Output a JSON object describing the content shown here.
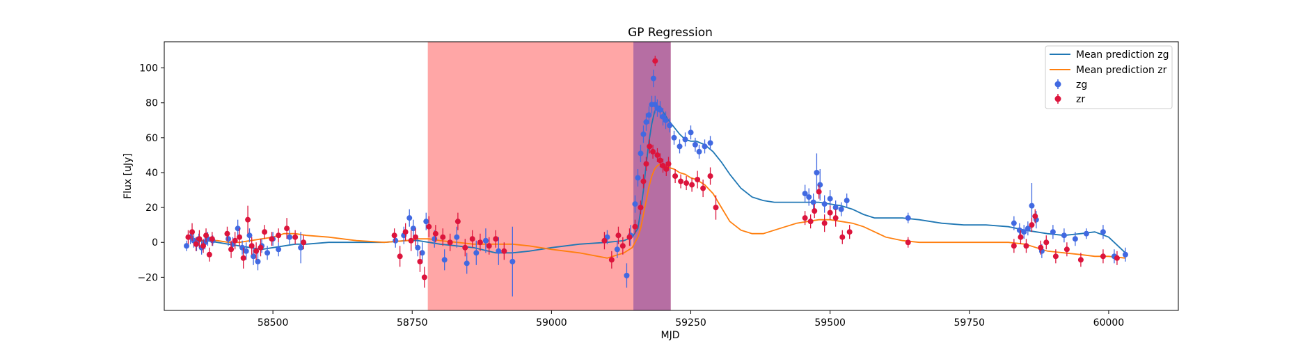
{
  "chart_data": {
    "type": "scatter",
    "title": "GP Regression",
    "xlabel": "MJD",
    "ylabel": "Flux [uJy]",
    "xlim": [
      58305,
      60125
    ],
    "ylim": [
      -39,
      115
    ],
    "x_ticks": [
      58500,
      58750,
      59000,
      59250,
      59500,
      59750,
      60000
    ],
    "y_ticks": [
      -20,
      0,
      20,
      40,
      60,
      80,
      100
    ],
    "grid": false,
    "legend_position": "top-right",
    "shaded_regions": [
      {
        "x0": 58778,
        "x1": 59214,
        "color": "#ff4d4d",
        "opacity": 0.5
      },
      {
        "x0": 59147,
        "x1": 59214,
        "color": "#7a3fa0",
        "opacity": 0.55
      }
    ],
    "series": [
      {
        "name": "Mean prediction zg",
        "kind": "line",
        "color": "#1f77b4",
        "x": [
          58360,
          58380,
          58400,
          58420,
          58440,
          58460,
          58480,
          58500,
          58520,
          58540,
          58560,
          58600,
          58650,
          58700,
          58740,
          58760,
          58780,
          58800,
          58830,
          58860,
          58900,
          58930,
          58960,
          59000,
          59050,
          59100,
          59130,
          59145,
          59155,
          59160,
          59165,
          59170,
          59175,
          59180,
          59185,
          59190,
          59195,
          59200,
          59210,
          59220,
          59230,
          59240,
          59250,
          59260,
          59275,
          59290,
          59305,
          59320,
          59340,
          59360,
          59380,
          59400,
          59420,
          59440,
          59460,
          59480,
          59500,
          59520,
          59540,
          59560,
          59580,
          59600,
          59630,
          59660,
          59700,
          59740,
          59780,
          59820,
          59850,
          59870,
          59890,
          59920,
          59950,
          59975,
          60000,
          60030
        ],
        "y": [
          1,
          1,
          0,
          -1,
          -2,
          -3,
          -4,
          -3,
          -2,
          -1,
          -1,
          0,
          0,
          0,
          1,
          1,
          0,
          -1,
          -2,
          -3,
          -6,
          -6,
          -5,
          -3,
          -1,
          0,
          1,
          3,
          8,
          18,
          30,
          45,
          58,
          68,
          75,
          78,
          78,
          75,
          70,
          66,
          62,
          59,
          58,
          58,
          56,
          52,
          46,
          39,
          31,
          26,
          24,
          23,
          23,
          23,
          23,
          23,
          22,
          21,
          19,
          16,
          14,
          14,
          14,
          13,
          11,
          10,
          10,
          9,
          7,
          6,
          5,
          4,
          5,
          6,
          3,
          -6
        ]
      },
      {
        "name": "Mean prediction zr",
        "kind": "line",
        "color": "#ff7f0e",
        "x": [
          58360,
          58380,
          58400,
          58420,
          58440,
          58460,
          58480,
          58500,
          58520,
          58540,
          58560,
          58600,
          58650,
          58700,
          58740,
          58760,
          58780,
          58800,
          58830,
          58860,
          58900,
          58930,
          58960,
          59000,
          59050,
          59100,
          59130,
          59145,
          59155,
          59160,
          59165,
          59170,
          59175,
          59180,
          59185,
          59190,
          59195,
          59200,
          59210,
          59220,
          59230,
          59240,
          59250,
          59260,
          59275,
          59290,
          59305,
          59320,
          59340,
          59360,
          59380,
          59400,
          59420,
          59440,
          59460,
          59480,
          59500,
          59520,
          59540,
          59560,
          59580,
          59600,
          59630,
          59660,
          59700,
          59740,
          59780,
          59820,
          59850,
          59870,
          59890,
          59920,
          59950,
          59975,
          60000,
          60030
        ],
        "y": [
          0,
          1,
          1,
          0,
          0,
          1,
          2,
          3,
          5,
          5,
          4,
          3,
          1,
          0,
          1,
          2,
          2,
          1,
          0,
          -1,
          -1,
          -1,
          -2,
          -4,
          -6,
          -9,
          -6,
          -3,
          3,
          8,
          16,
          24,
          32,
          38,
          42,
          44,
          45,
          44,
          43,
          42,
          40,
          39,
          37,
          36,
          33,
          28,
          20,
          12,
          7,
          5,
          5,
          7,
          9,
          11,
          12,
          13,
          13,
          12,
          11,
          9,
          6,
          3,
          1,
          0,
          0,
          0,
          0,
          0,
          -1,
          -3,
          -5,
          -6,
          -7,
          -8,
          -8,
          -9
        ]
      },
      {
        "name": "zg",
        "kind": "errorbar",
        "color": "#4169e1",
        "x": [
          58345,
          58352,
          58358,
          58363,
          58367,
          58372,
          58378,
          58383,
          58392,
          58420,
          58428,
          58437,
          58445,
          58452,
          58458,
          58465,
          58473,
          58480,
          58490,
          58500,
          58510,
          58530,
          58550,
          58720,
          58735,
          58745,
          58752,
          58760,
          58768,
          58775,
          58790,
          58808,
          58830,
          58848,
          58865,
          58882,
          58905,
          58930,
          59100,
          59118,
          59135,
          59142,
          59150,
          59155,
          59160,
          59165,
          59170,
          59175,
          59180,
          59183,
          59186,
          59190,
          59195,
          59200,
          59205,
          59212,
          59220,
          59230,
          59240,
          59250,
          59258,
          59265,
          59275,
          59285,
          59455,
          59462,
          59470,
          59476,
          59482,
          59490,
          59500,
          59510,
          59520,
          59530,
          59640,
          59830,
          59840,
          59848,
          59855,
          59862,
          59870,
          59880,
          59900,
          59920,
          59940,
          59960,
          59990,
          60010,
          60030
        ],
        "y": [
          -2,
          3,
          1,
          -1,
          2,
          -3,
          0,
          2,
          1,
          2,
          -1,
          8,
          -3,
          -5,
          4,
          -8,
          -11,
          -2,
          -6,
          2,
          -4,
          3,
          -3,
          1,
          4,
          14,
          8,
          -3,
          -6,
          12,
          2,
          -10,
          3,
          -12,
          -6,
          1,
          -5,
          -11,
          3,
          -4,
          -19,
          4,
          22,
          37,
          51,
          62,
          69,
          73,
          79,
          94,
          79,
          77,
          76,
          72,
          70,
          67,
          60,
          55,
          59,
          63,
          56,
          52,
          55,
          57,
          28,
          26,
          23,
          40,
          33,
          22,
          25,
          20,
          19,
          24,
          14,
          11,
          7,
          6,
          8,
          21,
          13,
          -5,
          6,
          4,
          2,
          5,
          6,
          -8,
          -7
        ],
        "err": [
          3,
          4,
          4,
          4,
          3,
          4,
          4,
          4,
          3,
          4,
          4,
          5,
          4,
          5,
          4,
          5,
          5,
          4,
          4,
          4,
          4,
          4,
          9,
          4,
          5,
          5,
          5,
          5,
          6,
          5,
          5,
          6,
          6,
          6,
          7,
          7,
          8,
          20,
          4,
          5,
          7,
          6,
          5,
          5,
          5,
          5,
          5,
          5,
          5,
          5,
          5,
          5,
          5,
          5,
          5,
          4,
          4,
          4,
          4,
          4,
          4,
          4,
          4,
          4,
          5,
          5,
          5,
          11,
          9,
          5,
          5,
          4,
          4,
          4,
          3,
          4,
          4,
          4,
          4,
          13,
          5,
          4,
          4,
          4,
          4,
          3,
          4,
          4,
          4
        ]
      },
      {
        "name": "zr",
        "kind": "errorbar",
        "color": "#dc143c",
        "x": [
          58348,
          58355,
          58362,
          58368,
          58375,
          58380,
          58386,
          58391,
          58418,
          58425,
          58432,
          58440,
          58447,
          58455,
          58462,
          58470,
          58478,
          58485,
          58498,
          58510,
          58525,
          58540,
          58555,
          58718,
          58728,
          58738,
          58748,
          58756,
          58764,
          58772,
          58780,
          58792,
          58805,
          58818,
          58832,
          58845,
          58858,
          58872,
          58888,
          58900,
          58915,
          59095,
          59108,
          59120,
          59128,
          59140,
          59150,
          59160,
          59165,
          59170,
          59176,
          59182,
          59186,
          59190,
          59195,
          59200,
          59206,
          59210,
          59222,
          59232,
          59242,
          59252,
          59262,
          59272,
          59285,
          59295,
          59455,
          59465,
          59472,
          59480,
          59490,
          59500,
          59510,
          59522,
          59535,
          59640,
          59830,
          59842,
          59852,
          59862,
          59868,
          59878,
          59888,
          59905,
          59925,
          59950,
          59990,
          60015
        ],
        "y": [
          3,
          6,
          -1,
          2,
          -2,
          4,
          -7,
          2,
          5,
          -4,
          1,
          3,
          -9,
          13,
          -2,
          -5,
          -3,
          6,
          2,
          4,
          8,
          3,
          0,
          4,
          -8,
          6,
          1,
          3,
          -11,
          -20,
          9,
          5,
          3,
          0,
          12,
          -3,
          2,
          0,
          -2,
          2,
          -5,
          1,
          -10,
          4,
          -2,
          3,
          9,
          20,
          35,
          45,
          55,
          52,
          104,
          50,
          47,
          44,
          42,
          45,
          38,
          35,
          34,
          33,
          36,
          31,
          38,
          20,
          14,
          12,
          18,
          29,
          11,
          17,
          14,
          3,
          6,
          0,
          -2,
          3,
          -2,
          10,
          15,
          -3,
          0,
          -8,
          -4,
          -10,
          -8,
          -9
        ],
        "err": [
          4,
          5,
          4,
          5,
          4,
          4,
          4,
          4,
          4,
          5,
          5,
          5,
          6,
          8,
          5,
          5,
          5,
          4,
          4,
          4,
          6,
          4,
          4,
          4,
          6,
          5,
          6,
          5,
          6,
          6,
          6,
          5,
          5,
          5,
          5,
          5,
          5,
          5,
          5,
          5,
          5,
          5,
          5,
          5,
          5,
          5,
          4,
          4,
          4,
          4,
          4,
          4,
          3,
          4,
          4,
          4,
          4,
          4,
          4,
          4,
          4,
          4,
          5,
          5,
          5,
          7,
          4,
          4,
          4,
          4,
          5,
          4,
          5,
          4,
          4,
          3,
          4,
          4,
          4,
          4,
          4,
          4,
          4,
          4,
          4,
          4,
          4,
          4
        ]
      }
    ]
  }
}
